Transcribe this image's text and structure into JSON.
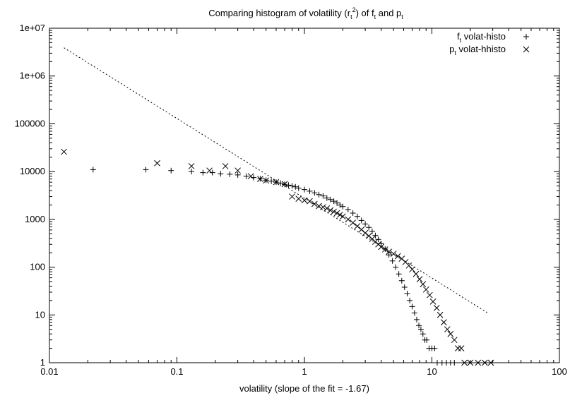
{
  "chart_data": {
    "type": "scatter",
    "title": {
      "t1": "Comparing histogram of volatility (r",
      "t2": "t",
      "t3": "2",
      "t4": ") of f",
      "t5": "t",
      "t6": " and p",
      "t7": "t"
    },
    "xlabel": "volatility (slope of the fit = -1.67)",
    "ylabel": "",
    "x_scale": "log",
    "y_scale": "log",
    "xlim": [
      0.01,
      100
    ],
    "ylim": [
      1,
      10000000
    ],
    "x_ticks": [
      {
        "value": 0.01,
        "label": "0.01"
      },
      {
        "value": 0.1,
        "label": "0.1"
      },
      {
        "value": 1,
        "label": "1"
      },
      {
        "value": 10,
        "label": "10"
      },
      {
        "value": 100,
        "label": "100"
      }
    ],
    "y_ticks": [
      {
        "value": 1,
        "label": "1"
      },
      {
        "value": 10,
        "label": "10"
      },
      {
        "value": 100,
        "label": "100"
      },
      {
        "value": 1000,
        "label": "1000"
      },
      {
        "value": 10000,
        "label": "10000"
      },
      {
        "value": 100000,
        "label": "100000"
      },
      {
        "value": 1000000,
        "label": "1e+06"
      },
      {
        "value": 10000000,
        "label": "1e+07"
      }
    ],
    "grid": false,
    "legend_position": "top-right",
    "legend": [
      {
        "main": "f",
        "sub": "t",
        "rest": " volat-histo",
        "marker": "+"
      },
      {
        "main": "p",
        "sub": "t",
        "rest": " volat-hhisto",
        "marker": "x"
      }
    ],
    "fit_line": {
      "style": "dotted",
      "slope": -1.67,
      "x": [
        0.013,
        28
      ],
      "y": [
        3900000,
        10.6
      ]
    },
    "series": [
      {
        "marker": "+",
        "points": [
          [
            0.022,
            11000
          ],
          [
            0.057,
            11000
          ],
          [
            0.09,
            10500
          ],
          [
            0.13,
            10000
          ],
          [
            0.16,
            9500
          ],
          [
            0.19,
            9500
          ],
          [
            0.22,
            9000
          ],
          [
            0.26,
            8800
          ],
          [
            0.3,
            8500
          ],
          [
            0.35,
            8000
          ],
          [
            0.4,
            7500
          ],
          [
            0.45,
            7100
          ],
          [
            0.5,
            6600
          ],
          [
            0.55,
            6300
          ],
          [
            0.6,
            6000
          ],
          [
            0.65,
            5700
          ],
          [
            0.7,
            5400
          ],
          [
            0.75,
            5200
          ],
          [
            0.8,
            5000
          ],
          [
            0.85,
            4800
          ],
          [
            0.9,
            4500
          ],
          [
            1.0,
            4200
          ],
          [
            1.1,
            3900
          ],
          [
            1.2,
            3600
          ],
          [
            1.3,
            3300
          ],
          [
            1.4,
            3100
          ],
          [
            1.5,
            2800
          ],
          [
            1.6,
            2600
          ],
          [
            1.7,
            2400
          ],
          [
            1.8,
            2200
          ],
          [
            1.9,
            2000
          ],
          [
            2.0,
            1850
          ],
          [
            2.2,
            1600
          ],
          [
            2.4,
            1350
          ],
          [
            2.6,
            1150
          ],
          [
            2.8,
            950
          ],
          [
            3.0,
            800
          ],
          [
            3.2,
            680
          ],
          [
            3.4,
            560
          ],
          [
            3.6,
            460
          ],
          [
            3.8,
            380
          ],
          [
            4.0,
            310
          ],
          [
            4.3,
            240
          ],
          [
            4.6,
            180
          ],
          [
            4.9,
            135
          ],
          [
            5.2,
            100
          ],
          [
            5.5,
            72
          ],
          [
            5.8,
            52
          ],
          [
            6.1,
            38
          ],
          [
            6.4,
            28
          ],
          [
            6.7,
            20
          ],
          [
            7.0,
            15
          ],
          [
            7.3,
            11
          ],
          [
            7.6,
            8
          ],
          [
            7.9,
            6
          ],
          [
            8.2,
            5
          ],
          [
            8.5,
            4
          ],
          [
            8.8,
            3
          ],
          [
            9.1,
            3
          ],
          [
            9.5,
            2
          ],
          [
            10.0,
            2
          ],
          [
            10.5,
            2
          ],
          [
            11.0,
            1
          ],
          [
            12.0,
            1
          ],
          [
            13.0,
            1
          ],
          [
            14.0,
            1
          ],
          [
            15.0,
            1
          ]
        ]
      },
      {
        "marker": "x",
        "points": [
          [
            0.013,
            26000
          ],
          [
            0.07,
            15000
          ],
          [
            0.13,
            13000
          ],
          [
            0.18,
            10500
          ],
          [
            0.24,
            13000
          ],
          [
            0.3,
            10500
          ],
          [
            0.38,
            8000
          ],
          [
            0.45,
            7000
          ],
          [
            0.5,
            6500
          ],
          [
            0.6,
            6000
          ],
          [
            0.7,
            5500
          ],
          [
            0.8,
            3000
          ],
          [
            0.9,
            2700
          ],
          [
            1.0,
            2500
          ],
          [
            1.1,
            2400
          ],
          [
            1.2,
            2100
          ],
          [
            1.3,
            1900
          ],
          [
            1.4,
            1800
          ],
          [
            1.5,
            1700
          ],
          [
            1.6,
            1550
          ],
          [
            1.7,
            1450
          ],
          [
            1.8,
            1350
          ],
          [
            1.9,
            1250
          ],
          [
            2.0,
            1150
          ],
          [
            2.2,
            1000
          ],
          [
            2.4,
            850
          ],
          [
            2.6,
            720
          ],
          [
            2.8,
            610
          ],
          [
            3.0,
            520
          ],
          [
            3.2,
            450
          ],
          [
            3.4,
            390
          ],
          [
            3.6,
            340
          ],
          [
            3.8,
            300
          ],
          [
            4.0,
            265
          ],
          [
            4.3,
            235
          ],
          [
            4.6,
            210
          ],
          [
            5.0,
            190
          ],
          [
            5.4,
            170
          ],
          [
            5.8,
            150
          ],
          [
            6.2,
            128
          ],
          [
            6.6,
            108
          ],
          [
            7.0,
            90
          ],
          [
            7.5,
            72
          ],
          [
            8.0,
            56
          ],
          [
            8.5,
            44
          ],
          [
            9.0,
            34
          ],
          [
            9.6,
            26
          ],
          [
            10.2,
            19
          ],
          [
            10.9,
            14
          ],
          [
            11.6,
            10
          ],
          [
            12.4,
            7
          ],
          [
            13.2,
            5
          ],
          [
            14.0,
            4
          ],
          [
            15.0,
            3
          ],
          [
            16.0,
            2
          ],
          [
            17.0,
            2
          ],
          [
            18.0,
            1
          ],
          [
            20.0,
            1
          ],
          [
            23.0,
            1
          ],
          [
            26.0,
            1
          ],
          [
            29.0,
            1
          ]
        ]
      }
    ]
  }
}
